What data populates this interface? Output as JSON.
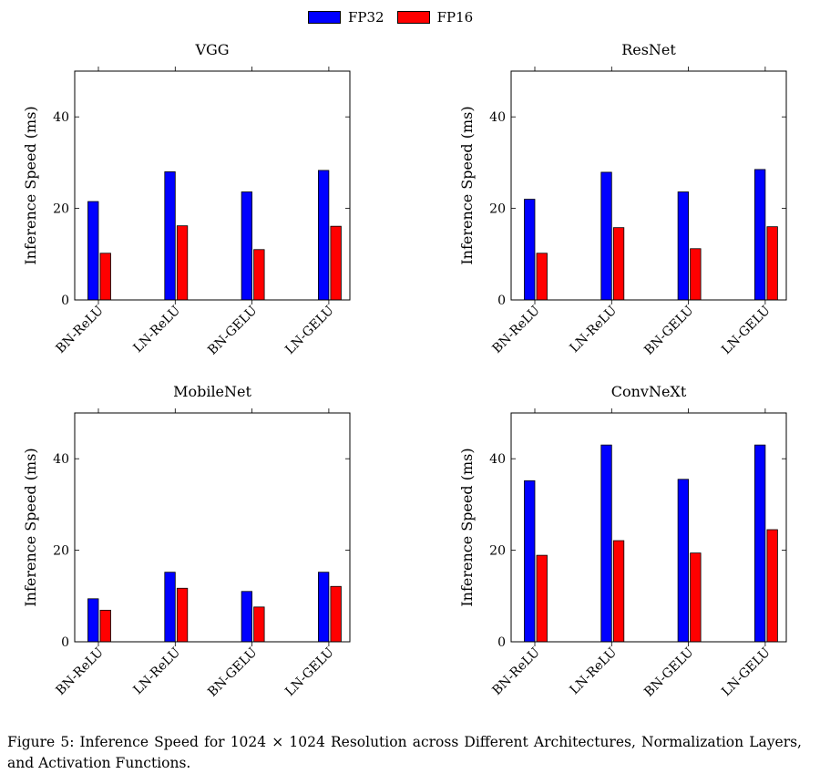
{
  "legend": {
    "fp32_label": "FP32",
    "fp16_label": "FP16"
  },
  "colors": {
    "fp32": "#0000ff",
    "fp16": "#ff0000"
  },
  "caption": "Figure 5: Inference Speed for 1024 × 1024 Resolution across Different Architectures, Normalization Layers, and Activation Functions.",
  "chart_data": [
    {
      "type": "bar",
      "title": "VGG",
      "ylabel": "Inference Speed (ms)",
      "categories": [
        "BN-ReLU",
        "LN-ReLU",
        "BN-GELU",
        "LN-GELU"
      ],
      "ylim": [
        0,
        50
      ],
      "yticks": [
        0,
        20,
        40
      ],
      "series": [
        {
          "name": "FP32",
          "values": [
            21.5,
            28,
            23.6,
            28.3
          ]
        },
        {
          "name": "FP16",
          "values": [
            10.2,
            16.2,
            11,
            16.1
          ]
        }
      ]
    },
    {
      "type": "bar",
      "title": "ResNet",
      "ylabel": "Inference Speed (ms)",
      "categories": [
        "BN-ReLU",
        "LN-ReLU",
        "BN-GELU",
        "LN-GELU"
      ],
      "ylim": [
        0,
        50
      ],
      "yticks": [
        0,
        20,
        40
      ],
      "series": [
        {
          "name": "FP32",
          "values": [
            22,
            27.9,
            23.6,
            28.5
          ]
        },
        {
          "name": "FP16",
          "values": [
            10.2,
            15.8,
            11.2,
            16
          ]
        }
      ]
    },
    {
      "type": "bar",
      "title": "MobileNet",
      "ylabel": "Inference Speed (ms)",
      "categories": [
        "BN-ReLU",
        "LN-ReLU",
        "BN-GELU",
        "LN-GELU"
      ],
      "ylim": [
        0,
        50
      ],
      "yticks": [
        0,
        20,
        40
      ],
      "series": [
        {
          "name": "FP32",
          "values": [
            9.4,
            15.2,
            11,
            15.2
          ]
        },
        {
          "name": "FP16",
          "values": [
            6.9,
            11.7,
            7.6,
            12.1
          ]
        }
      ]
    },
    {
      "type": "bar",
      "title": "ConvNeXt",
      "ylabel": "Inference Speed (ms)",
      "categories": [
        "BN-ReLU",
        "LN-ReLU",
        "BN-GELU",
        "LN-GELU"
      ],
      "ylim": [
        0,
        50
      ],
      "yticks": [
        0,
        20,
        40
      ],
      "series": [
        {
          "name": "FP32",
          "values": [
            35.2,
            43,
            35.5,
            43
          ]
        },
        {
          "name": "FP16",
          "values": [
            18.9,
            22.1,
            19.4,
            24.5
          ]
        }
      ]
    }
  ]
}
